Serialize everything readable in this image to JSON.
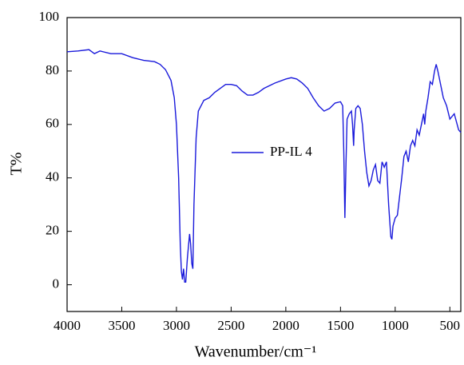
{
  "chart_data": {
    "type": "line",
    "x_label": "Wavenumber/cm⁻¹",
    "y_label": "T%",
    "xlim": [
      4000,
      400
    ],
    "ylim": [
      -10,
      100
    ],
    "xticks": [
      4000,
      3500,
      3000,
      2500,
      2000,
      1500,
      1000,
      500
    ],
    "yticks": [
      0,
      20,
      40,
      60,
      80,
      100
    ],
    "legend": "center",
    "series": [
      {
        "name": "PP-IL 4",
        "color": "#1a1adb",
        "x": [
          4000,
          3900,
          3800,
          3750,
          3700,
          3600,
          3500,
          3400,
          3300,
          3200,
          3150,
          3100,
          3050,
          3020,
          3000,
          2980,
          2965,
          2955,
          2945,
          2935,
          2925,
          2915,
          2900,
          2880,
          2870,
          2860,
          2850,
          2840,
          2820,
          2800,
          2750,
          2700,
          2650,
          2600,
          2550,
          2500,
          2450,
          2400,
          2350,
          2300,
          2250,
          2200,
          2100,
          2000,
          1950,
          1900,
          1850,
          1800,
          1750,
          1700,
          1650,
          1600,
          1550,
          1500,
          1480,
          1470,
          1460,
          1450,
          1440,
          1420,
          1400,
          1390,
          1380,
          1375,
          1360,
          1340,
          1320,
          1300,
          1280,
          1260,
          1240,
          1220,
          1200,
          1180,
          1160,
          1140,
          1120,
          1100,
          1080,
          1060,
          1040,
          1030,
          1020,
          1000,
          980,
          960,
          940,
          920,
          900,
          880,
          860,
          840,
          820,
          800,
          780,
          760,
          740,
          730,
          720,
          700,
          680,
          660,
          640,
          625,
          610,
          590,
          560,
          530,
          500,
          480,
          460,
          440,
          420,
          400
        ],
        "values": [
          87.2,
          87.5,
          88,
          86.5,
          87.5,
          86.5,
          86.5,
          85,
          84,
          83.5,
          82.5,
          80.5,
          76.5,
          70,
          60,
          40,
          15,
          5,
          2,
          6,
          1,
          1,
          10,
          19,
          15,
          8,
          6,
          30,
          55,
          65,
          69,
          70,
          72,
          73.5,
          75,
          75,
          74.5,
          72.5,
          71,
          71,
          72,
          73.5,
          75.5,
          77,
          77.5,
          77,
          75.5,
          73.5,
          70,
          67,
          65,
          66,
          68,
          68.5,
          67,
          50,
          25,
          45,
          62,
          64,
          65,
          60,
          52,
          58,
          66,
          67,
          66,
          60,
          50,
          42,
          37,
          39,
          43,
          45,
          39,
          38,
          46,
          44,
          46,
          30,
          18,
          17,
          22,
          25,
          26,
          33,
          40,
          48,
          50,
          46,
          52,
          54,
          52,
          58,
          56,
          60,
          64,
          60,
          65,
          70,
          76,
          75,
          80,
          82.5,
          80,
          76,
          70,
          67,
          62,
          63,
          64,
          61,
          58,
          57
        ]
      }
    ]
  }
}
